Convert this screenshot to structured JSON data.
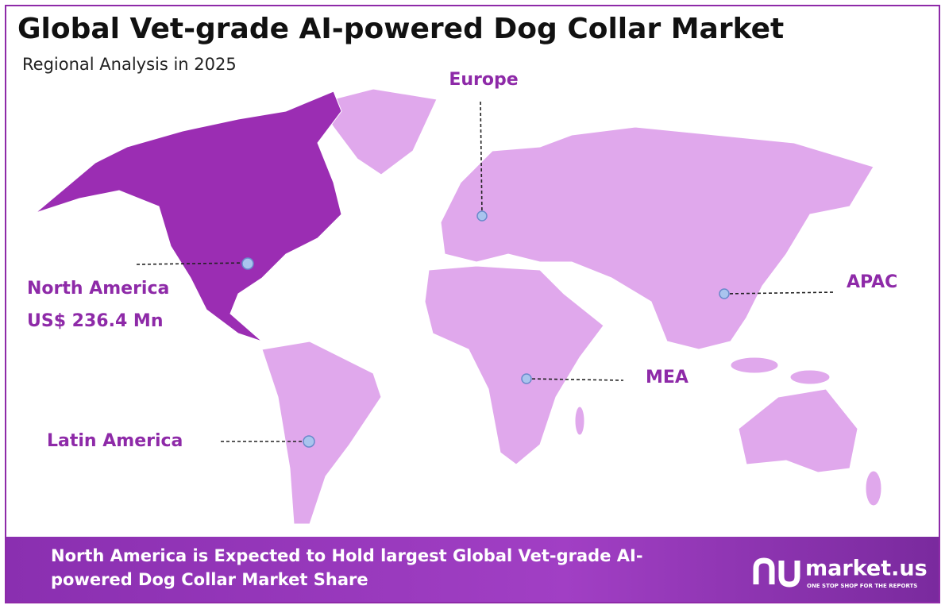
{
  "header": {
    "title": "Global Vet-grade AI-powered Dog Collar Market",
    "subtitle": "Regional Analysis in 2025"
  },
  "regions": [
    {
      "label": "North America",
      "value": "US$ 236.4 Mn"
    },
    {
      "label": "Europe"
    },
    {
      "label": "APAC"
    },
    {
      "label": "MEA"
    },
    {
      "label": "Latin America"
    }
  ],
  "footer": {
    "lines": [
      "North America is Expected to Hold largest Global Vet-grade AI-",
      "powered Dog Collar Market Share"
    ]
  },
  "logo": {
    "name": "market.us",
    "tagline": "ONE STOP SHOP FOR THE REPORTS"
  }
}
